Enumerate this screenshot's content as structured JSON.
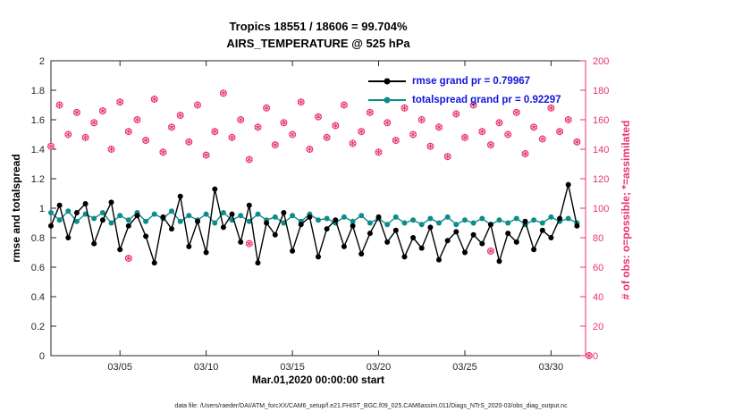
{
  "title": {
    "line1": "Tropics 18551 / 18606 = 99.704%",
    "line2": "AIRS_TEMPERATURE @ 525 hPa"
  },
  "axes": {
    "ylabel_left": "rmse and totalspread",
    "ylabel_right": "# of obs: o=possible; *=assimilated",
    "xlabel": "Mar.01,2020 00:00:00 start"
  },
  "legend": {
    "rmse": "rmse grand pr = 0.79967",
    "totalspread": "totalspread grand pr = 0.92297",
    "text_color": "#1414dc"
  },
  "footer": "data file: /Users/raeder/DAI/ATM_forcXX/CAM6_setup/f.e21.FHIST_BGC.f09_025.CAM6assim.011/Diags_NTrS_2020-03/obs_diag_output.nc",
  "colors": {
    "rmse": "#000000",
    "totalspread": "#0e8c8c",
    "obs": "#e8356d",
    "axis": "#262626"
  },
  "chart_data": {
    "type": "line",
    "title": "Tropics 18551 / 18606 = 99.704% | AIRS_TEMPERATURE @ 525 hPa",
    "xlabel": "Mar.01,2020 00:00:00 start",
    "ylabel_left": "rmse and totalspread",
    "ylabel_right": "# of obs: o=possible; *=assimilated",
    "legend_position": "top-right-inside",
    "grid": false,
    "xlim": [
      1,
      32
    ],
    "ylim_left": [
      0,
      2
    ],
    "ylim_right": [
      0,
      200
    ],
    "x_ticks": {
      "values": [
        5,
        10,
        15,
        20,
        25,
        30
      ],
      "labels": [
        "03/05",
        "03/10",
        "03/15",
        "03/20",
        "03/25",
        "03/30"
      ]
    },
    "y_left_ticks": {
      "values": [
        0,
        0.2,
        0.4,
        0.6,
        0.8,
        1,
        1.2,
        1.4,
        1.6,
        1.8,
        2
      ],
      "labels": [
        "0",
        "0.2",
        "0.4",
        "0.6",
        "0.8",
        "1",
        "1.2",
        "1.4",
        "1.6",
        "1.8",
        "2"
      ]
    },
    "y_right_ticks": {
      "values": [
        0,
        20,
        40,
        60,
        80,
        100,
        120,
        140,
        160,
        180,
        200
      ],
      "labels": [
        "0",
        "20",
        "40",
        "60",
        "80",
        "100",
        "120",
        "140",
        "160",
        "180",
        "200"
      ]
    },
    "x": [
      1,
      1.5,
      2,
      2.5,
      3,
      3.5,
      4,
      4.5,
      5,
      5.5,
      6,
      6.5,
      7,
      7.5,
      8,
      8.5,
      9,
      9.5,
      10,
      10.5,
      11,
      11.5,
      12,
      12.5,
      13,
      13.5,
      14,
      14.5,
      15,
      15.5,
      16,
      16.5,
      17,
      17.5,
      18,
      18.5,
      19,
      19.5,
      20,
      20.5,
      21,
      21.5,
      22,
      22.5,
      23,
      23.5,
      24,
      24.5,
      25,
      25.5,
      26,
      26.5,
      27,
      27.5,
      28,
      28.5,
      29,
      29.5,
      30,
      30.5,
      31,
      31.5
    ],
    "series": [
      {
        "name": "rmse",
        "grand_mean": 0.79967,
        "axis": "left",
        "values": [
          0.88,
          1.02,
          0.8,
          0.97,
          1.03,
          0.76,
          0.92,
          1.04,
          0.72,
          0.88,
          0.95,
          0.81,
          0.63,
          0.94,
          0.86,
          1.08,
          0.74,
          0.91,
          0.7,
          1.13,
          0.87,
          0.96,
          0.77,
          1.02,
          0.63,
          0.9,
          0.82,
          0.97,
          0.71,
          0.89,
          0.94,
          0.67,
          0.86,
          0.92,
          0.74,
          0.88,
          0.69,
          0.83,
          0.94,
          0.77,
          0.85,
          0.67,
          0.8,
          0.73,
          0.87,
          0.65,
          0.78,
          0.84,
          0.7,
          0.82,
          0.76,
          0.89,
          0.64,
          0.83,
          0.77,
          0.91,
          0.72,
          0.85,
          0.8,
          0.93,
          1.16,
          0.88
        ]
      },
      {
        "name": "totalspread",
        "grand_mean": 0.92297,
        "axis": "left",
        "values": [
          0.97,
          0.92,
          0.98,
          0.91,
          0.96,
          0.93,
          0.97,
          0.9,
          0.95,
          0.92,
          0.97,
          0.91,
          0.96,
          0.93,
          0.98,
          0.91,
          0.95,
          0.92,
          0.96,
          0.9,
          0.97,
          0.92,
          0.95,
          0.91,
          0.96,
          0.92,
          0.94,
          0.9,
          0.95,
          0.91,
          0.96,
          0.92,
          0.93,
          0.9,
          0.94,
          0.91,
          0.95,
          0.9,
          0.93,
          0.89,
          0.94,
          0.9,
          0.92,
          0.89,
          0.93,
          0.9,
          0.94,
          0.89,
          0.92,
          0.9,
          0.93,
          0.89,
          0.92,
          0.9,
          0.93,
          0.89,
          0.92,
          0.9,
          0.94,
          0.91,
          0.93,
          0.9
        ]
      }
    ],
    "obs_counts": {
      "name": "number_of_observations",
      "axis": "right",
      "marker": "circle-and-asterisk",
      "values": [
        142,
        170,
        150,
        165,
        148,
        158,
        166,
        140,
        172,
        152,
        160,
        146,
        174,
        138,
        155,
        163,
        145,
        170,
        136,
        152,
        178,
        148,
        160,
        133,
        155,
        168,
        143,
        158,
        150,
        172,
        140,
        162,
        148,
        156,
        170,
        144,
        152,
        165,
        138,
        158,
        146,
        168,
        150,
        160,
        142,
        155,
        135,
        164,
        148,
        170,
        152,
        143,
        158,
        150,
        165,
        137,
        155,
        147,
        168,
        152,
        160,
        145
      ]
    },
    "obs_outliers": [
      {
        "x": 5.5,
        "value": 66
      },
      {
        "x": 12.5,
        "value": 76
      },
      {
        "x": 26.5,
        "value": 71
      },
      {
        "x": 32.2,
        "value": 0
      }
    ]
  }
}
